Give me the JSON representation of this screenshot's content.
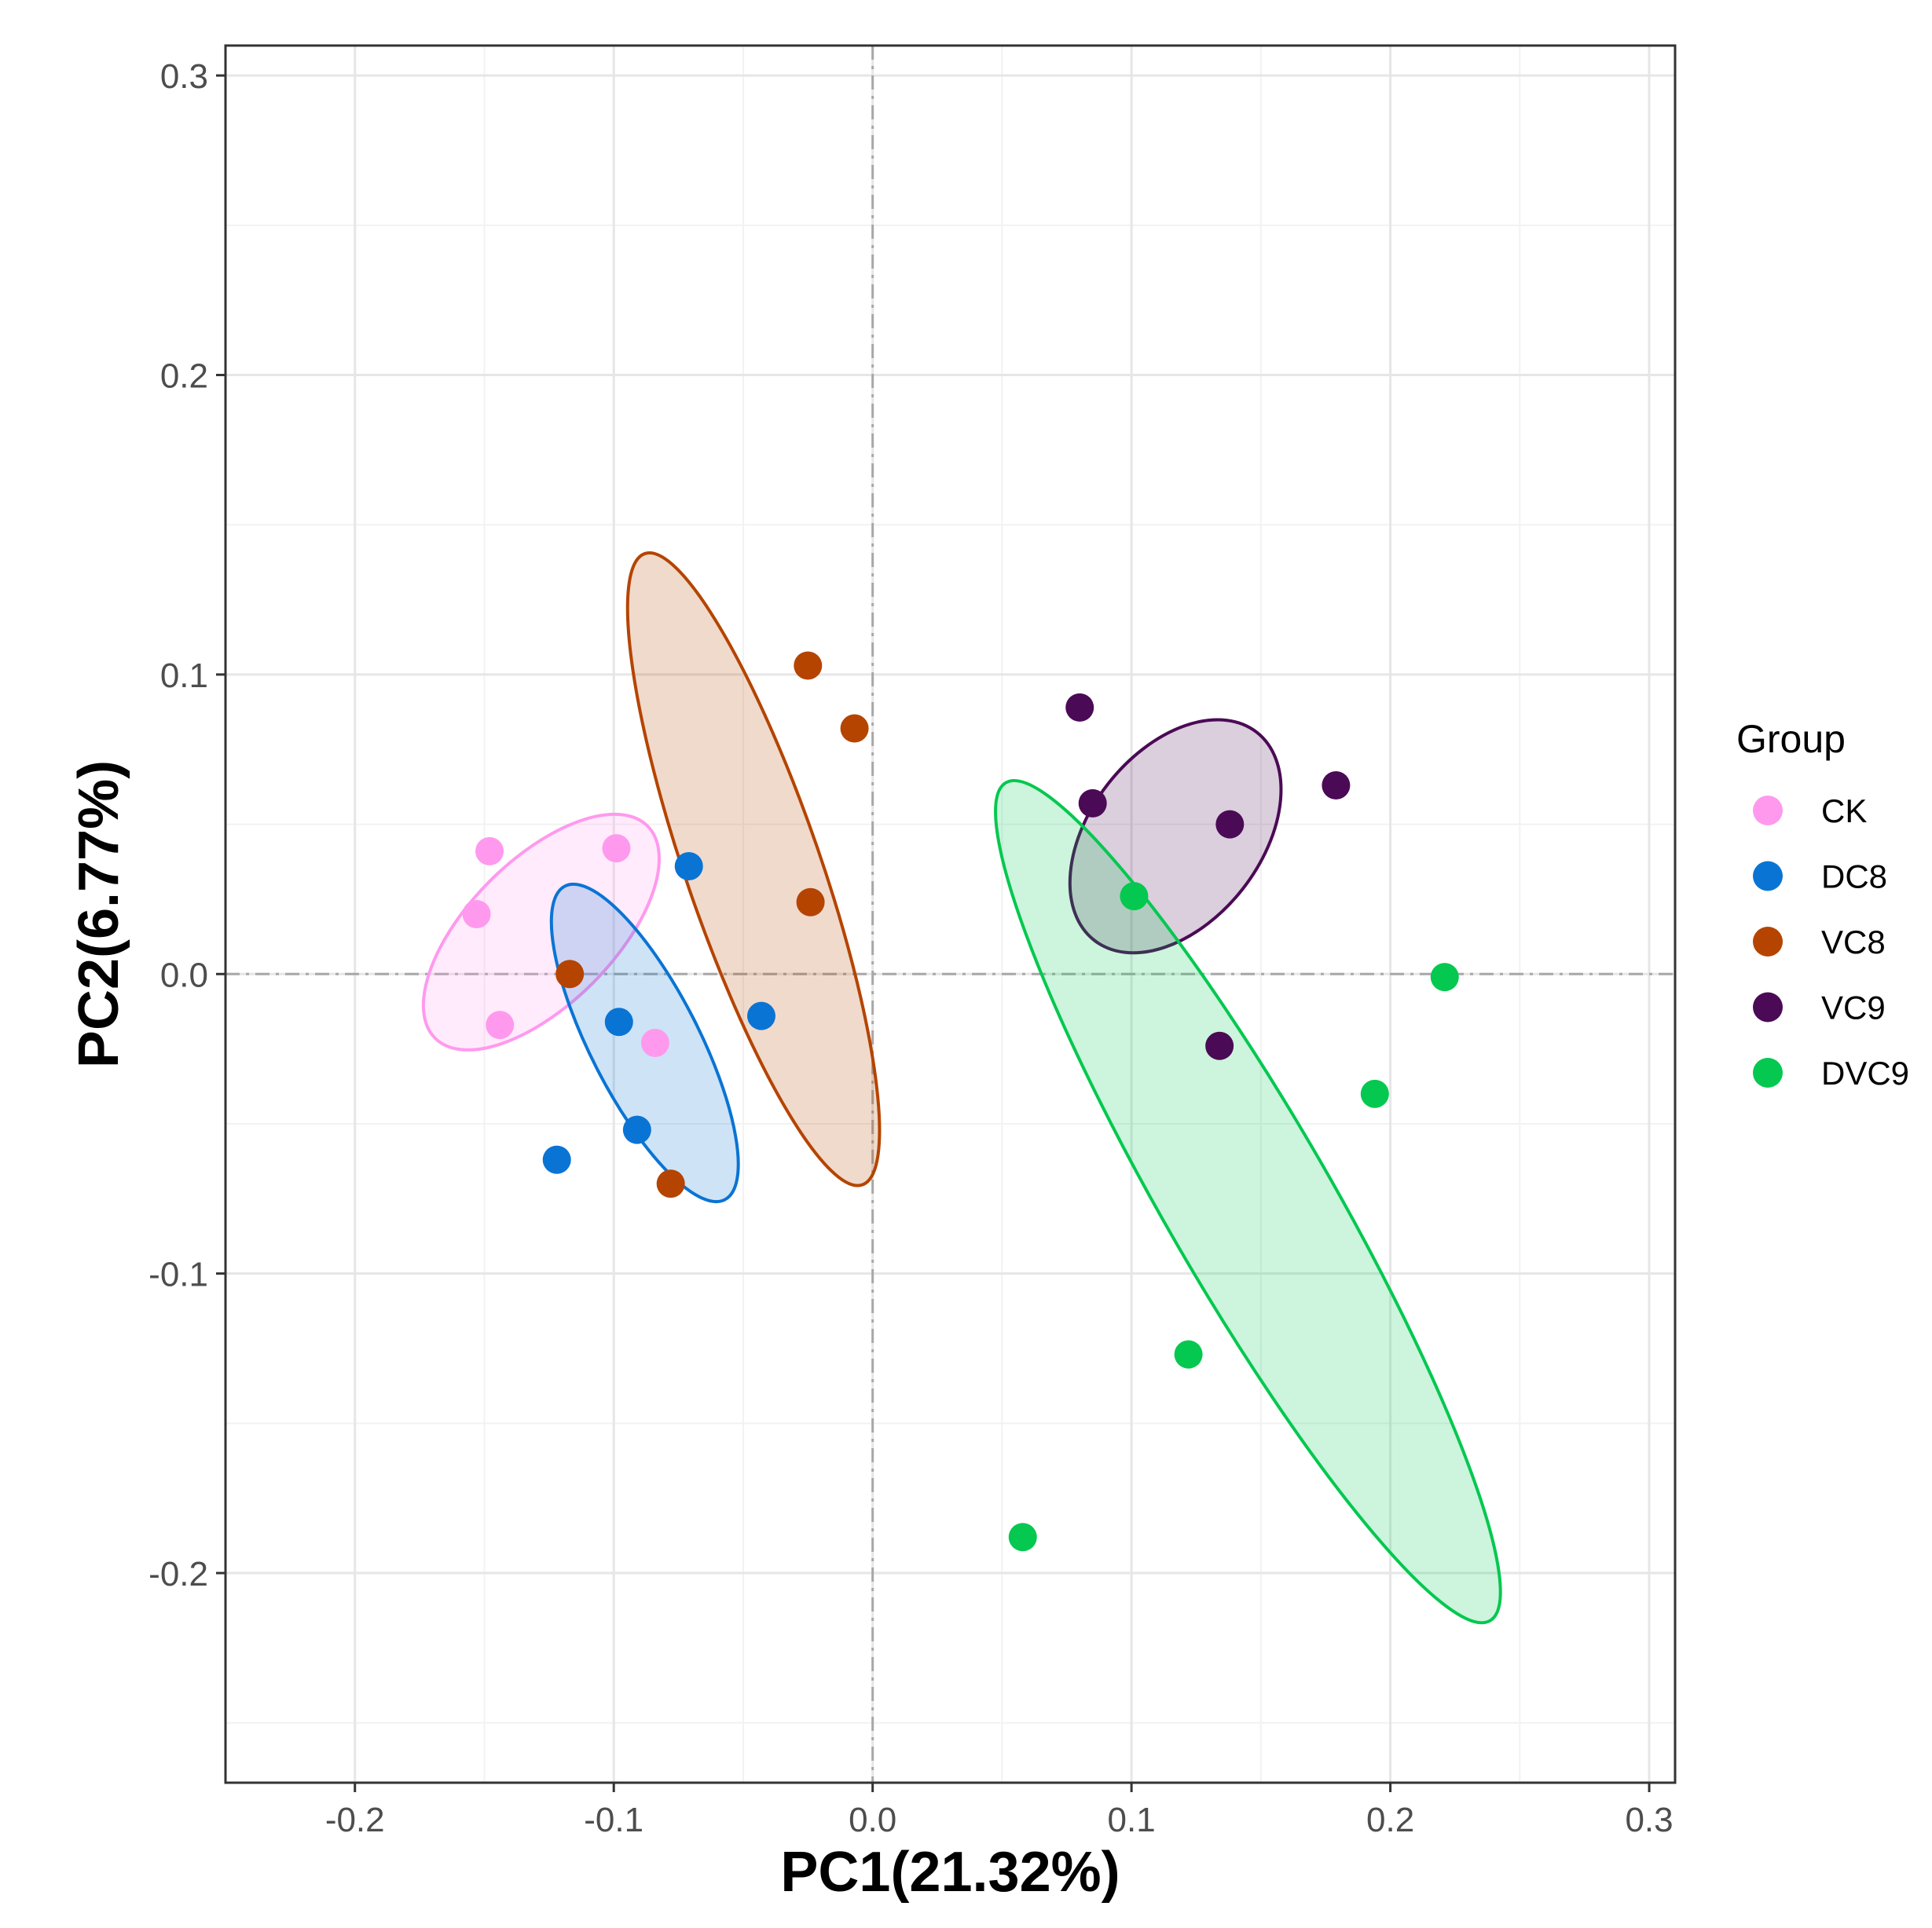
{
  "chart_data": {
    "type": "scatter",
    "subtype": "PCA with confidence ellipses",
    "title": "",
    "xlabel": "PC1(21.32%)",
    "ylabel": "PC2(6.77%)",
    "xlim": [
      -0.25,
      0.31
    ],
    "ylim": [
      -0.27,
      0.31
    ],
    "x_ticks": [
      -0.2,
      -0.1,
      0.0,
      0.1,
      0.2,
      0.3
    ],
    "x_tick_labels": [
      "-0.2",
      "-0.1",
      "0.0",
      "0.1",
      "0.2",
      "0.3"
    ],
    "y_ticks": [
      -0.2,
      -0.1,
      0.0,
      0.1,
      0.2,
      0.3
    ],
    "y_tick_labels": [
      "-0.2",
      "-0.1",
      "0.0",
      "0.1",
      "0.2",
      "0.3"
    ],
    "grid": true,
    "reference_lines": {
      "x": 0,
      "y": 0,
      "style": "dash-dot"
    },
    "legend": {
      "title": "Group",
      "position": "right"
    },
    "series": [
      {
        "name": "CK",
        "color": "#ff99ee",
        "points": [
          [
            -0.148,
            0.041
          ],
          [
            -0.099,
            0.042
          ],
          [
            -0.153,
            0.02
          ],
          [
            -0.144,
            -0.017
          ],
          [
            -0.084,
            -0.023
          ]
        ],
        "ellipse": {
          "cx": -0.128,
          "cy": 0.014,
          "rx": 0.058,
          "ry": 0.028,
          "angle_deg": -45
        }
      },
      {
        "name": "DC8",
        "color": "#0a74d4",
        "points": [
          [
            -0.071,
            0.036
          ],
          [
            -0.098,
            -0.016
          ],
          [
            -0.043,
            -0.014
          ],
          [
            -0.091,
            -0.052
          ],
          [
            -0.122,
            -0.062
          ]
        ],
        "ellipse": {
          "cx": -0.088,
          "cy": -0.023,
          "rx": 0.068,
          "ry": 0.021,
          "angle_deg": 63
        }
      },
      {
        "name": "VC8",
        "color": "#b54400",
        "points": [
          [
            -0.025,
            0.103
          ],
          [
            -0.007,
            0.082
          ],
          [
            -0.024,
            0.024
          ],
          [
            -0.117,
            0.0
          ],
          [
            -0.078,
            -0.07
          ]
        ],
        "ellipse": {
          "cx": -0.046,
          "cy": 0.035,
          "rx": 0.129,
          "ry": 0.026,
          "angle_deg": 71
        }
      },
      {
        "name": "VC9",
        "color": "#4b0a55",
        "points": [
          [
            0.08,
            0.089
          ],
          [
            0.179,
            0.063
          ],
          [
            0.085,
            0.057
          ],
          [
            0.138,
            0.05
          ],
          [
            0.134,
            -0.024
          ]
        ],
        "ellipse": {
          "cx": 0.117,
          "cy": 0.046,
          "rx": 0.051,
          "ry": 0.033,
          "angle_deg": -52
        }
      },
      {
        "name": "DVC9",
        "color": "#05c850",
        "points": [
          [
            0.101,
            0.026
          ],
          [
            0.221,
            -0.001
          ],
          [
            0.194,
            -0.04
          ],
          [
            0.122,
            -0.127
          ],
          [
            0.058,
            -0.188
          ]
        ],
        "ellipse": {
          "cx": 0.145,
          "cy": -0.076,
          "rx": 0.187,
          "ry": 0.032,
          "angle_deg": 60
        }
      }
    ]
  }
}
